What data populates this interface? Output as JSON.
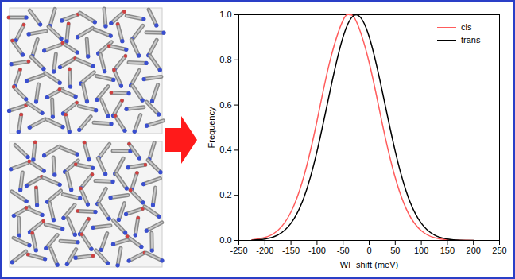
{
  "chart_data": {
    "type": "line",
    "x_label": "WF shift (meV)",
    "y_label": "Frequency",
    "xlim": [
      -250,
      250
    ],
    "xticks": [
      -250,
      -200,
      -150,
      -100,
      -50,
      0,
      50,
      100,
      150,
      200,
      250
    ],
    "ylim": [
      0,
      1
    ],
    "yticks": [
      {
        "value": 0,
        "label": "0.0"
      },
      {
        "value": 0.2,
        "label": "0.2"
      },
      {
        "value": 0.4,
        "label": "0.4"
      },
      {
        "value": 0.6,
        "label": "0.6"
      },
      {
        "value": 0.8,
        "label": "0.8"
      },
      {
        "value": 1,
        "label": "1.0"
      }
    ],
    "legend": "upper right",
    "series": [
      {
        "name": "cis",
        "color": "#ff5c5c",
        "x": [
          -225,
          -200,
          -175,
          -150,
          -125,
          -100,
          -75,
          -50,
          -38,
          -25,
          0,
          25,
          50,
          75,
          100,
          125,
          150,
          175,
          200
        ],
        "values": [
          0.003,
          0.013,
          0.045,
          0.126,
          0.286,
          0.53,
          0.797,
          0.976,
          1.0,
          0.972,
          0.788,
          0.519,
          0.278,
          0.121,
          0.043,
          0.012,
          0.003,
          0.001,
          0.0
        ]
      },
      {
        "name": "trans",
        "color": "#000000",
        "x": [
          -225,
          -200,
          -175,
          -150,
          -125,
          -100,
          -75,
          -50,
          -25,
          0,
          25,
          50,
          75,
          100,
          125,
          150,
          175,
          200
        ],
        "values": [
          0.001,
          0.006,
          0.024,
          0.076,
          0.191,
          0.395,
          0.662,
          0.902,
          1.0,
          0.902,
          0.662,
          0.395,
          0.191,
          0.076,
          0.024,
          0.006,
          0.001,
          0.0
        ]
      }
    ]
  }
}
